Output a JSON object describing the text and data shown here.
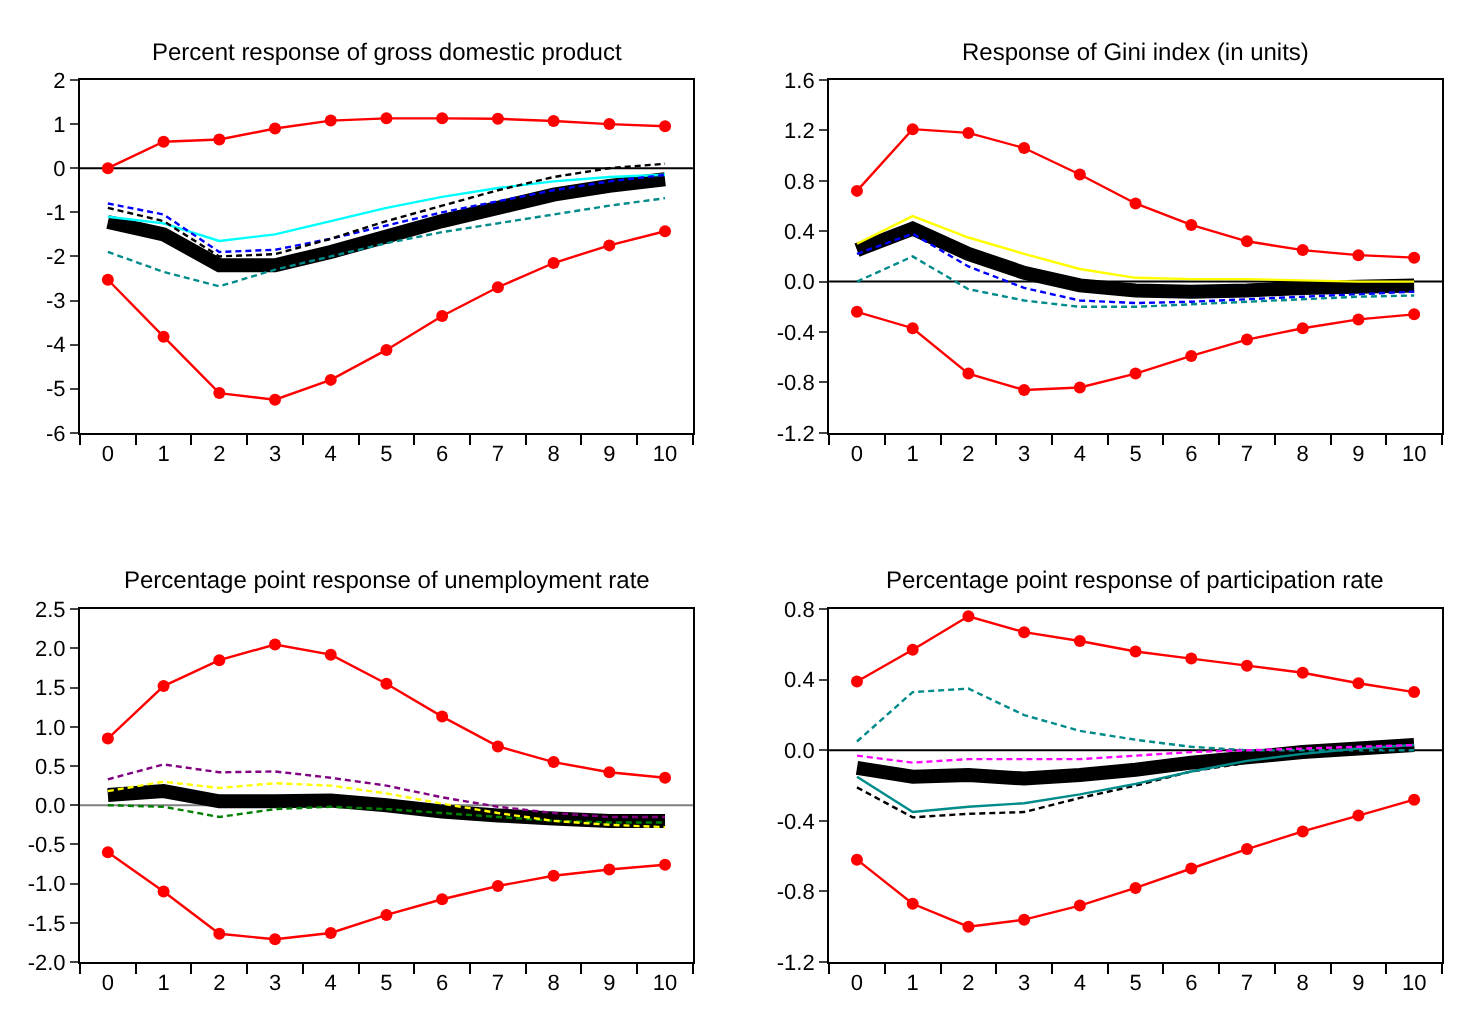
{
  "chart_data": [
    {
      "type": "line",
      "title": "Percent response of gross domestic product",
      "x": [
        0,
        1,
        2,
        3,
        4,
        5,
        6,
        7,
        8,
        9,
        10
      ],
      "xlim": [
        -0.5,
        10.5
      ],
      "xticks": [
        0,
        1,
        2,
        3,
        4,
        5,
        6,
        7,
        8,
        9,
        10
      ],
      "ylim": [
        -6,
        2
      ],
      "yticks": [
        -6,
        -5,
        -4,
        -3,
        -2,
        -1,
        0,
        1,
        2
      ],
      "grid": false,
      "ref_lines": [
        {
          "axis": "y",
          "value": 0,
          "color": "#000000"
        }
      ],
      "series": [
        {
          "color": "#000000",
          "line_style": "solid",
          "values": [
            -1.22,
            -1.5,
            -2.2,
            -2.2,
            -1.9,
            -1.55,
            -1.2,
            -0.9,
            -0.6,
            -0.4,
            -0.25
          ]
        },
        {
          "color": "#00ffff",
          "line_style": "solid",
          "values": [
            -1.1,
            -1.25,
            -1.65,
            -1.5,
            -1.2,
            -0.9,
            -0.65,
            -0.45,
            -0.3,
            -0.2,
            -0.15
          ]
        },
        {
          "color": "#008b8b",
          "line_style": "dashed",
          "values": [
            -1.9,
            -2.35,
            -2.68,
            -2.3,
            -2.0,
            -1.7,
            -1.45,
            -1.25,
            -1.05,
            -0.85,
            -0.68
          ]
        },
        {
          "color": "#0000ff",
          "line_style": "dashed",
          "values": [
            -0.8,
            -1.05,
            -1.9,
            -1.85,
            -1.6,
            -1.3,
            -1.0,
            -0.75,
            -0.5,
            -0.3,
            -0.15
          ]
        },
        {
          "color": "#000000",
          "line_style": "dashed",
          "values": [
            -0.9,
            -1.2,
            -2.0,
            -1.95,
            -1.6,
            -1.2,
            -0.85,
            -0.5,
            -0.2,
            0.0,
            0.1
          ]
        },
        {
          "color": "#ff0000",
          "line_style": "solid",
          "marker": "circle",
          "values": [
            0.0,
            0.6,
            0.65,
            0.9,
            1.08,
            1.13,
            1.13,
            1.12,
            1.07,
            1.0,
            0.95
          ]
        },
        {
          "color": "#ff0000",
          "line_style": "solid",
          "marker": "circle",
          "values": [
            -2.53,
            -3.82,
            -5.1,
            -5.25,
            -4.8,
            -4.12,
            -3.35,
            -2.7,
            -2.15,
            -1.75,
            -1.43
          ]
        }
      ]
    },
    {
      "type": "line",
      "title": "Response of Gini index (in units)",
      "x": [
        0,
        1,
        2,
        3,
        4,
        5,
        6,
        7,
        8,
        9,
        10
      ],
      "xlim": [
        -0.5,
        10.5
      ],
      "xticks": [
        0,
        1,
        2,
        3,
        4,
        5,
        6,
        7,
        8,
        9,
        10
      ],
      "ylim": [
        -1.2,
        1.6
      ],
      "yticks": [
        {
          "value": -1.2,
          "label": "-1.2"
        },
        {
          "value": -0.8,
          "label": "-0.8"
        },
        {
          "value": -0.4,
          "label": "-0.4"
        },
        {
          "value": 0,
          "label": "0.0"
        },
        {
          "value": 0.4,
          "label": "0.4"
        },
        {
          "value": 0.8,
          "label": "0.8"
        },
        {
          "value": 1.2,
          "label": "1.2"
        },
        {
          "value": 1.6,
          "label": "1.6"
        }
      ],
      "grid": false,
      "ref_lines": [
        {
          "axis": "y",
          "value": 0,
          "color": "#000000"
        }
      ],
      "series": [
        {
          "color": "#000000",
          "line_style": "solid",
          "values": [
            0.25,
            0.42,
            0.22,
            0.07,
            -0.03,
            -0.07,
            -0.08,
            -0.07,
            -0.05,
            -0.04,
            -0.03
          ]
        },
        {
          "color": "#ffff00",
          "line_style": "solid",
          "values": [
            0.3,
            0.52,
            0.35,
            0.22,
            0.1,
            0.03,
            0.02,
            0.02,
            0.01,
            0.0,
            0.0
          ]
        },
        {
          "color": "#0000ff",
          "line_style": "dashed",
          "values": [
            0.22,
            0.38,
            0.12,
            -0.05,
            -0.15,
            -0.17,
            -0.16,
            -0.14,
            -0.12,
            -0.1,
            -0.08
          ]
        },
        {
          "color": "#008b8b",
          "line_style": "dashed",
          "values": [
            0.0,
            0.2,
            -0.06,
            -0.15,
            -0.2,
            -0.2,
            -0.18,
            -0.16,
            -0.14,
            -0.12,
            -0.11
          ]
        },
        {
          "color": "#ff0000",
          "line_style": "solid",
          "marker": "circle",
          "values": [
            0.72,
            1.21,
            1.18,
            1.06,
            0.85,
            0.62,
            0.45,
            0.32,
            0.25,
            0.21,
            0.19
          ]
        },
        {
          "color": "#ff0000",
          "line_style": "solid",
          "marker": "circle",
          "values": [
            -0.24,
            -0.37,
            -0.73,
            -0.86,
            -0.84,
            -0.73,
            -0.59,
            -0.46,
            -0.37,
            -0.3,
            -0.26
          ]
        }
      ]
    },
    {
      "type": "line",
      "title": "Percentage point response of unemployment rate",
      "x": [
        0,
        1,
        2,
        3,
        4,
        5,
        6,
        7,
        8,
        9,
        10
      ],
      "xlim": [
        -0.5,
        10.5
      ],
      "xticks": [
        0,
        1,
        2,
        3,
        4,
        5,
        6,
        7,
        8,
        9,
        10
      ],
      "ylim": [
        -2,
        2.5
      ],
      "yticks": [
        {
          "value": -2,
          "label": "-2.0"
        },
        {
          "value": -1.5,
          "label": "-1.5"
        },
        {
          "value": -1,
          "label": "-1.0"
        },
        {
          "value": -0.5,
          "label": "-0.5"
        },
        {
          "value": 0,
          "label": "0.0"
        },
        {
          "value": 0.5,
          "label": "0.5"
        },
        {
          "value": 1,
          "label": "1.0"
        },
        {
          "value": 1.5,
          "label": "1.5"
        },
        {
          "value": 2,
          "label": "2.0"
        },
        {
          "value": 2.5,
          "label": "2.5"
        }
      ],
      "grid": false,
      "ref_lines": [
        {
          "axis": "y",
          "value": 0,
          "color": "#808080"
        }
      ],
      "series": [
        {
          "color": "#000000",
          "line_style": "solid",
          "values": [
            0.13,
            0.18,
            0.05,
            0.05,
            0.06,
            0.0,
            -0.08,
            -0.13,
            -0.17,
            -0.2,
            -0.2
          ]
        },
        {
          "color": "#800080",
          "line_style": "dashed",
          "values": [
            0.33,
            0.52,
            0.42,
            0.43,
            0.35,
            0.25,
            0.1,
            -0.02,
            -0.1,
            -0.15,
            -0.15
          ]
        },
        {
          "color": "#008000",
          "line_style": "dashed",
          "values": [
            0.0,
            -0.02,
            -0.15,
            -0.05,
            -0.02,
            -0.05,
            -0.1,
            -0.15,
            -0.2,
            -0.22,
            -0.22
          ]
        },
        {
          "color": "#ffff00",
          "line_style": "dashed",
          "values": [
            0.18,
            0.3,
            0.22,
            0.28,
            0.25,
            0.15,
            0.02,
            -0.1,
            -0.2,
            -0.25,
            -0.28
          ]
        },
        {
          "color": "#ff0000",
          "line_style": "solid",
          "marker": "circle",
          "values": [
            0.85,
            1.52,
            1.85,
            2.05,
            1.92,
            1.55,
            1.13,
            0.75,
            0.55,
            0.42,
            0.35
          ]
        },
        {
          "color": "#ff0000",
          "line_style": "solid",
          "marker": "circle",
          "values": [
            -0.6,
            -1.1,
            -1.64,
            -1.71,
            -1.63,
            -1.4,
            -1.2,
            -1.03,
            -0.9,
            -0.82,
            -0.76
          ]
        }
      ]
    },
    {
      "type": "line",
      "title": "Percentage point response of participation rate",
      "x": [
        0,
        1,
        2,
        3,
        4,
        5,
        6,
        7,
        8,
        9,
        10
      ],
      "xlim": [
        -0.5,
        10.5
      ],
      "xticks": [
        0,
        1,
        2,
        3,
        4,
        5,
        6,
        7,
        8,
        9,
        10
      ],
      "ylim": [
        -1.2,
        0.8
      ],
      "yticks": [
        {
          "value": -1.2,
          "label": "-1.2"
        },
        {
          "value": -0.8,
          "label": "-0.8"
        },
        {
          "value": -0.4,
          "label": "-0.4"
        },
        {
          "value": 0,
          "label": "0.0"
        },
        {
          "value": 0.4,
          "label": "0.4"
        },
        {
          "value": 0.8,
          "label": "0.8"
        }
      ],
      "grid": false,
      "ref_lines": [
        {
          "axis": "y",
          "value": 0,
          "color": "#000000"
        }
      ],
      "series": [
        {
          "color": "#000000",
          "line_style": "solid",
          "values": [
            -0.1,
            -0.15,
            -0.14,
            -0.16,
            -0.14,
            -0.11,
            -0.07,
            -0.04,
            -0.01,
            0.01,
            0.03
          ]
        },
        {
          "color": "#008b8b",
          "line_style": "dashed",
          "values": [
            0.05,
            0.33,
            0.35,
            0.2,
            0.11,
            0.06,
            0.02,
            0.0,
            0.0,
            0.0,
            0.0
          ]
        },
        {
          "color": "#000000",
          "line_style": "dashed",
          "values": [
            -0.21,
            -0.38,
            -0.36,
            -0.35,
            -0.27,
            -0.2,
            -0.12,
            -0.07,
            -0.03,
            0.0,
            0.02
          ]
        },
        {
          "color": "#008b8b",
          "line_style": "solid",
          "values": [
            -0.15,
            -0.35,
            -0.32,
            -0.3,
            -0.25,
            -0.19,
            -0.12,
            -0.06,
            -0.02,
            0.01,
            0.03
          ]
        },
        {
          "color": "#ff00ff",
          "line_style": "dashed",
          "values": [
            -0.03,
            -0.07,
            -0.05,
            -0.05,
            -0.05,
            -0.03,
            -0.01,
            0.0,
            0.01,
            0.02,
            0.03
          ]
        },
        {
          "color": "#ff0000",
          "line_style": "solid",
          "marker": "circle",
          "values": [
            0.39,
            0.57,
            0.76,
            0.67,
            0.62,
            0.56,
            0.52,
            0.48,
            0.44,
            0.38,
            0.33
          ]
        },
        {
          "color": "#ff0000",
          "line_style": "solid",
          "marker": "circle",
          "values": [
            -0.62,
            -0.87,
            -1.0,
            -0.96,
            -0.88,
            -0.78,
            -0.67,
            -0.56,
            -0.46,
            -0.37,
            -0.28
          ]
        }
      ]
    }
  ]
}
